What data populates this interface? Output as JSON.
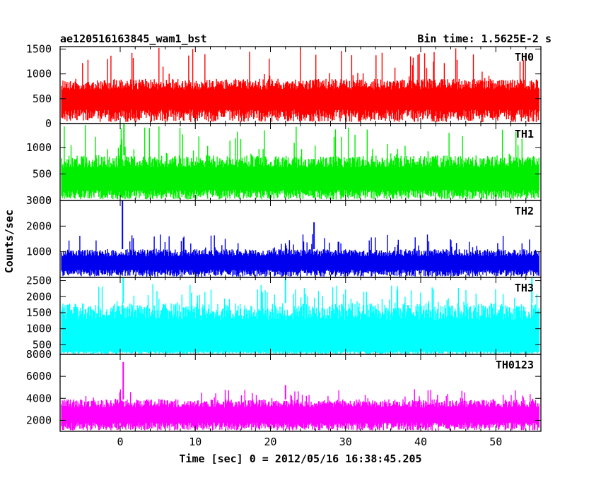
{
  "chart_data": {
    "type": "line",
    "title": "ae120516163845_wam1_bst",
    "subtitle": "Bin time: 1.5625E-2 s",
    "xlabel": "Time [sec] 0 = 2012/05/16 16:38:45.205",
    "ylabel": "Counts/sec",
    "xlim": [
      -8,
      56
    ],
    "x_start": -7.8,
    "x_end": 55.8,
    "x_ticks": [
      0,
      10,
      20,
      30,
      40,
      50
    ],
    "x_tick_labels": [
      "0",
      "10",
      "20",
      "30",
      "40",
      "50"
    ],
    "series": [
      {
        "name": "TH0",
        "color": "#ff0000",
        "ylim": [
          0,
          1550
        ],
        "y_ticks": [
          0,
          500,
          1000,
          1500
        ],
        "y_tick_labels": [
          "0",
          "500",
          "1000",
          "1500"
        ],
        "base_min": 280,
        "base_max": 900,
        "spike_max": 1550,
        "peaks": []
      },
      {
        "name": "TH1",
        "color": "#00ee00",
        "ylim": [
          0,
          1450
        ],
        "y_ticks": [
          0,
          500,
          1000
        ],
        "y_tick_labels": [
          "0",
          "500",
          "1000"
        ],
        "base_min": 200,
        "base_max": 850,
        "spike_max": 1450,
        "peaks": [
          {
            "x": 0.5,
            "y": 1450
          }
        ]
      },
      {
        "name": "TH2",
        "color": "#0000ee",
        "ylim": [
          0,
          3000
        ],
        "y_ticks": [
          1000,
          2000,
          3000
        ],
        "y_tick_labels": [
          "1000",
          "2000",
          "3000"
        ],
        "base_min": 300,
        "base_max": 1100,
        "spike_max": 1700,
        "peaks": [
          {
            "x": 0.3,
            "y": 3000
          },
          {
            "x": 25.8,
            "y": 2150
          }
        ]
      },
      {
        "name": "TH3",
        "color": "#00ffff",
        "ylim": [
          200,
          2600
        ],
        "y_ticks": [
          500,
          1000,
          1500,
          2000,
          2500
        ],
        "y_tick_labels": [
          "500",
          "1000",
          "1500",
          "2000",
          "2500"
        ],
        "base_min": 300,
        "base_max": 1800,
        "spike_max": 2400,
        "peaks": [
          {
            "x": 0.4,
            "y": 2600
          },
          {
            "x": 22.0,
            "y": 2600
          },
          {
            "x": 54.8,
            "y": 2600
          }
        ]
      },
      {
        "name": "TH0123",
        "color": "#ff00ff",
        "ylim": [
          1000,
          8000
        ],
        "y_ticks": [
          2000,
          4000,
          6000,
          8000
        ],
        "y_tick_labels": [
          "2000",
          "4000",
          "6000",
          "8000"
        ],
        "base_min": 1800,
        "base_max": 3900,
        "spike_max": 4900,
        "peaks": [
          {
            "x": 0.4,
            "y": 7300
          },
          {
            "x": 22.0,
            "y": 5200
          }
        ]
      }
    ]
  }
}
